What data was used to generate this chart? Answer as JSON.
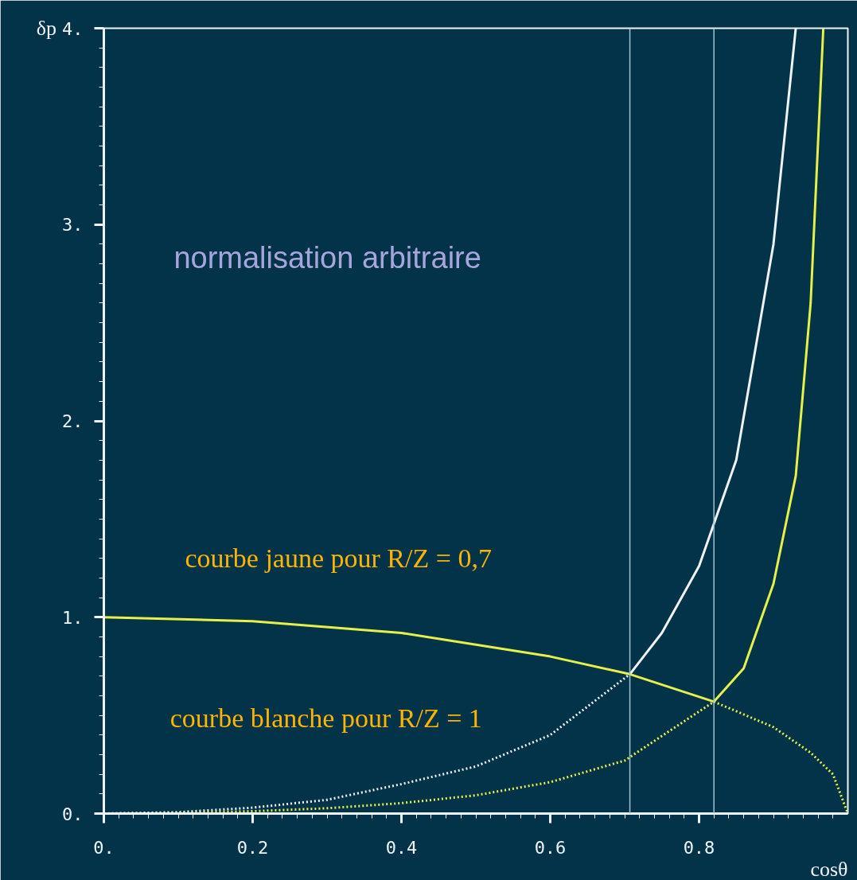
{
  "chart_data": {
    "type": "line",
    "xlabel": "cosθ",
    "ylabel": "δp",
    "xlim": [
      0,
      1
    ],
    "ylim": [
      0,
      4
    ],
    "xticks": [
      {
        "value": 0,
        "label": "0."
      },
      {
        "value": 0.2,
        "label": "0.2"
      },
      {
        "value": 0.4,
        "label": "0.4"
      },
      {
        "value": 0.6,
        "label": "0.6"
      },
      {
        "value": 0.8,
        "label": "0.8"
      }
    ],
    "yticks": [
      {
        "value": 0,
        "label": "0."
      },
      {
        "value": 1,
        "label": "1."
      },
      {
        "value": 2,
        "label": "2."
      },
      {
        "value": 3,
        "label": "3."
      },
      {
        "value": 4,
        "label": "4."
      }
    ],
    "grid": false,
    "series": [
      {
        "color": "#eef3f5",
        "line_style": "dotted",
        "x": [
          0,
          0.1,
          0.2,
          0.3,
          0.4,
          0.5,
          0.6,
          0.707
        ],
        "values": [
          0,
          0.007,
          0.03,
          0.07,
          0.15,
          0.24,
          0.4,
          0.71
        ]
      },
      {
        "color": "#eef3f5",
        "line_style": "solid",
        "x": [
          0.707,
          0.75,
          0.8,
          0.85,
          0.9,
          0.93
        ],
        "values": [
          0.71,
          0.92,
          1.26,
          1.8,
          2.9,
          4.0
        ]
      },
      {
        "color": "#e6f04a",
        "line_style": "dotted",
        "x": [
          0,
          0.1,
          0.2,
          0.3,
          0.4,
          0.5,
          0.6,
          0.7,
          0.82
        ],
        "values": [
          0,
          0.003,
          0.012,
          0.027,
          0.053,
          0.093,
          0.16,
          0.27,
          0.57
        ]
      },
      {
        "color": "#e6f04a",
        "line_style": "solid",
        "x": [
          0.82,
          0.86,
          0.9,
          0.93,
          0.95,
          0.967
        ],
        "values": [
          0.57,
          0.74,
          1.17,
          1.72,
          2.6,
          4.0
        ]
      },
      {
        "color": "#e6f04a",
        "line_style": "solid",
        "x": [
          0,
          0.2,
          0.4,
          0.6,
          0.707,
          0.82
        ],
        "values": [
          1,
          0.98,
          0.92,
          0.8,
          0.71,
          0.57
        ]
      },
      {
        "color": "#e6f04a",
        "line_style": "dotted",
        "x": [
          0.82,
          0.9,
          0.95,
          0.98,
          1.0
        ],
        "values": [
          0.57,
          0.44,
          0.31,
          0.2,
          0
        ]
      }
    ],
    "ref_lines": [
      {
        "axis": "x",
        "value": 0.707,
        "color": "#9cc4d0"
      },
      {
        "axis": "x",
        "value": 0.82,
        "color": "#9cc4d0"
      }
    ],
    "annotations": [
      "normalisation arbitraire",
      "courbe jaune pour R/Z = 0,7",
      "courbe blanche pour R/Z = 1"
    ]
  }
}
